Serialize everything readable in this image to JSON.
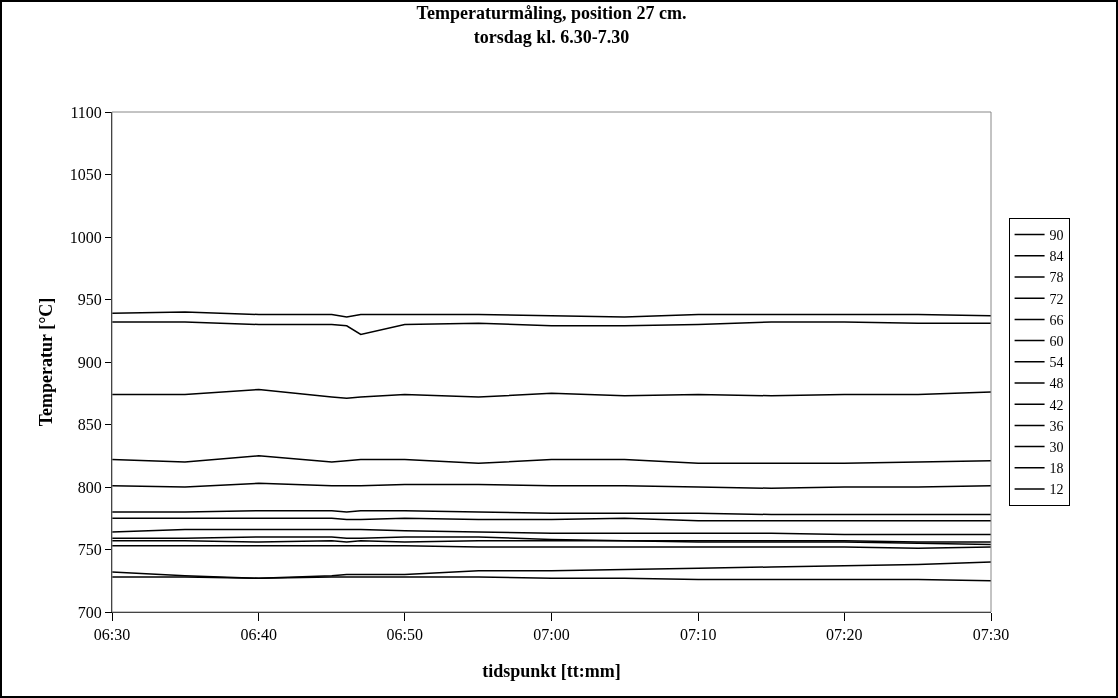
{
  "chart_data": {
    "type": "line",
    "title": "Temperaturmåling, position 27 cm.\ntorsdag kl. 6.30-7.30",
    "xlabel": "tidspunkt [tt:mm]",
    "ylabel": "Temperatur [°C]",
    "x": [
      6.5,
      6.583,
      6.667,
      6.75,
      6.767,
      6.783,
      6.833,
      6.917,
      7,
      7.083,
      7.167,
      7.25,
      7.333,
      7.417,
      7.5
    ],
    "xlim": [
      6.5,
      7.5
    ],
    "xticks": [
      {
        "value": 6.5,
        "label": "06:30"
      },
      {
        "value": 6.667,
        "label": "06:40"
      },
      {
        "value": 6.833,
        "label": "06:50"
      },
      {
        "value": 7,
        "label": "07:00"
      },
      {
        "value": 7.167,
        "label": "07:10"
      },
      {
        "value": 7.333,
        "label": "07:20"
      },
      {
        "value": 7.5,
        "label": "07:30"
      }
    ],
    "ylim": [
      700,
      1100
    ],
    "yticks": [
      700,
      750,
      800,
      850,
      900,
      950,
      1000,
      1050,
      1100
    ],
    "grid": false,
    "legend": "right",
    "marker": "none",
    "line_style": "solid",
    "series": [
      {
        "name": "90",
        "color": "#000000",
        "values": [
          939,
          940,
          938,
          938,
          936,
          938,
          938,
          938,
          937,
          936,
          938,
          938,
          938,
          938,
          937
        ]
      },
      {
        "name": "84",
        "color": "#000000",
        "values": [
          932,
          932,
          930,
          930,
          929,
          922,
          930,
          931,
          929,
          929,
          930,
          932,
          932,
          931,
          931
        ]
      },
      {
        "name": "78",
        "color": "#000000",
        "values": [
          874,
          874,
          878,
          872,
          871,
          872,
          874,
          872,
          875,
          873,
          874,
          873,
          874,
          874,
          876
        ]
      },
      {
        "name": "72",
        "color": "#000000",
        "values": [
          822,
          820,
          825,
          820,
          821,
          822,
          822,
          819,
          822,
          822,
          819,
          819,
          819,
          820,
          821
        ]
      },
      {
        "name": "66",
        "color": "#000000",
        "values": [
          801,
          800,
          803,
          801,
          801,
          801,
          802,
          802,
          801,
          801,
          800,
          799,
          800,
          800,
          801
        ]
      },
      {
        "name": "60",
        "color": "#000000",
        "values": [
          780,
          780,
          781,
          781,
          780,
          781,
          781,
          780,
          779,
          779,
          779,
          778,
          778,
          778,
          778
        ]
      },
      {
        "name": "54",
        "color": "#000000",
        "values": [
          775,
          775,
          775,
          775,
          774,
          774,
          775,
          774,
          774,
          775,
          773,
          773,
          773,
          773,
          773
        ]
      },
      {
        "name": "48",
        "color": "#000000",
        "values": [
          764,
          766,
          766,
          766,
          766,
          766,
          765,
          764,
          763,
          763,
          763,
          763,
          762,
          762,
          762
        ]
      },
      {
        "name": "42",
        "color": "#000000",
        "values": [
          759,
          759,
          760,
          760,
          759,
          759,
          760,
          760,
          758,
          757,
          757,
          757,
          757,
          756,
          756
        ]
      },
      {
        "name": "36",
        "color": "#000000",
        "values": [
          757,
          757,
          756,
          757,
          756,
          757,
          756,
          757,
          757,
          757,
          756,
          756,
          756,
          755,
          754
        ]
      },
      {
        "name": "30",
        "color": "#000000",
        "values": [
          753,
          753,
          753,
          753,
          753,
          753,
          753,
          752,
          752,
          752,
          752,
          752,
          752,
          751,
          752
        ]
      },
      {
        "name": "18",
        "color": "#000000",
        "values": [
          732,
          729,
          727,
          729,
          730,
          730,
          730,
          733,
          733,
          734,
          735,
          736,
          737,
          738,
          740
        ]
      },
      {
        "name": "12",
        "color": "#000000",
        "values": [
          728,
          728,
          727,
          728,
          728,
          728,
          728,
          728,
          727,
          727,
          726,
          726,
          726,
          726,
          725
        ]
      }
    ]
  }
}
